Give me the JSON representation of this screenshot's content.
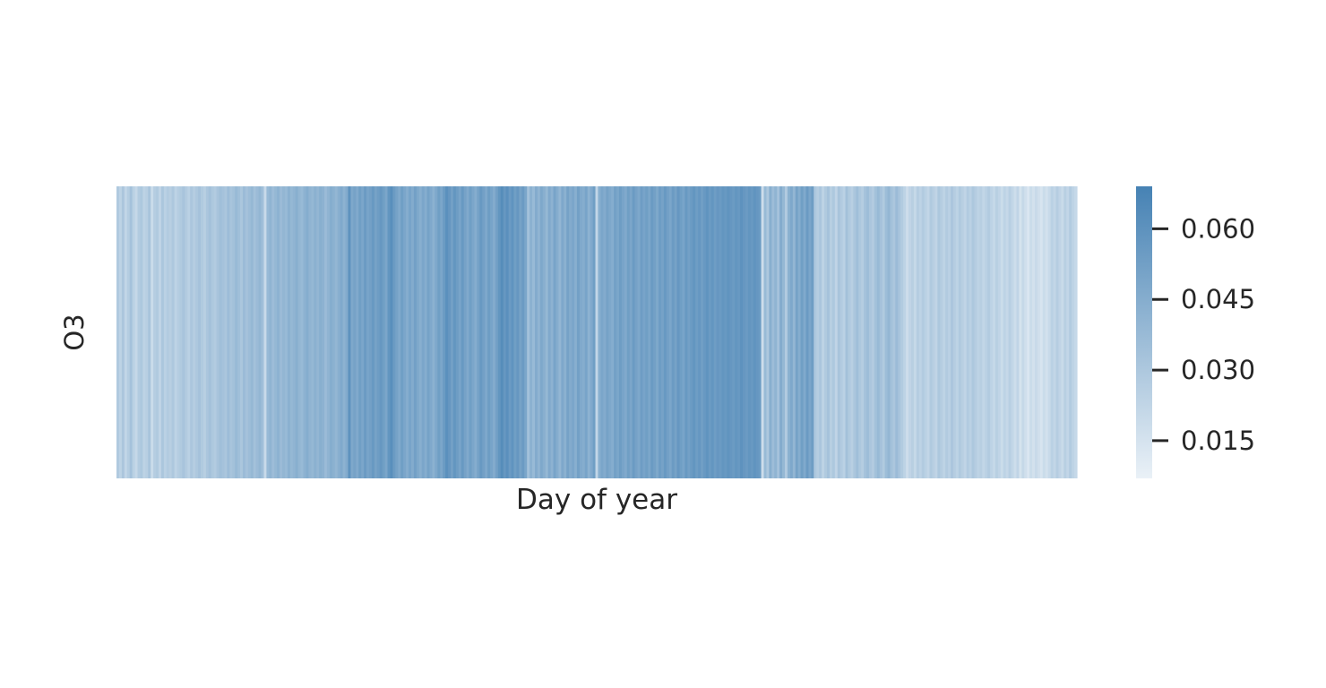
{
  "chart_data": {
    "type": "heatmap",
    "title": "",
    "xlabel": "Day of year",
    "ylabel": "",
    "row_labels": [
      "O3"
    ],
    "x": {
      "start": 1,
      "end": 365,
      "step": 1
    },
    "grid": false,
    "colormap": {
      "low": "#eaf1f7",
      "high": "#4682b4"
    },
    "colorbar": {
      "range": [
        0.007,
        0.069
      ],
      "ticks": [
        0.015,
        0.03,
        0.045,
        0.06
      ],
      "tick_labels": [
        "0.015",
        "0.030",
        "0.045",
        "0.060"
      ],
      "placement": "right"
    },
    "values": [
      0.029,
      0.024,
      0.031,
      0.022,
      0.027,
      0.033,
      0.025,
      0.021,
      0.028,
      0.03,
      0.024,
      0.026,
      0.032,
      0.019,
      0.027,
      0.029,
      0.023,
      0.031,
      0.025,
      0.028,
      0.026,
      0.03,
      0.024,
      0.027,
      0.029,
      0.032,
      0.028,
      0.025,
      0.031,
      0.027,
      0.03,
      0.033,
      0.029,
      0.026,
      0.031,
      0.034,
      0.03,
      0.028,
      0.032,
      0.035,
      0.033,
      0.031,
      0.036,
      0.032,
      0.034,
      0.038,
      0.035,
      0.031,
      0.037,
      0.033,
      0.036,
      0.039,
      0.034,
      0.037,
      0.04,
      0.035,
      0.02,
      0.038,
      0.041,
      0.036,
      0.039,
      0.042,
      0.037,
      0.04,
      0.038,
      0.043,
      0.039,
      0.041,
      0.044,
      0.04,
      0.038,
      0.042,
      0.045,
      0.041,
      0.039,
      0.043,
      0.04,
      0.044,
      0.042,
      0.037,
      0.041,
      0.045,
      0.043,
      0.04,
      0.044,
      0.047,
      0.042,
      0.046,
      0.06,
      0.048,
      0.051,
      0.047,
      0.053,
      0.049,
      0.055,
      0.05,
      0.052,
      0.056,
      0.051,
      0.054,
      0.057,
      0.053,
      0.049,
      0.058,
      0.062,
      0.055,
      0.051,
      0.047,
      0.053,
      0.049,
      0.045,
      0.05,
      0.046,
      0.052,
      0.048,
      0.044,
      0.049,
      0.045,
      0.051,
      0.047,
      0.043,
      0.048,
      0.053,
      0.049,
      0.055,
      0.061,
      0.057,
      0.052,
      0.058,
      0.054,
      0.05,
      0.056,
      0.051,
      0.047,
      0.053,
      0.049,
      0.045,
      0.051,
      0.056,
      0.052,
      0.048,
      0.054,
      0.05,
      0.046,
      0.052,
      0.058,
      0.063,
      0.057,
      0.061,
      0.055,
      0.059,
      0.053,
      0.057,
      0.051,
      0.055,
      0.049,
      0.034,
      0.043,
      0.038,
      0.046,
      0.041,
      0.048,
      0.044,
      0.039,
      0.047,
      0.042,
      0.05,
      0.045,
      0.04,
      0.048,
      0.043,
      0.051,
      0.046,
      0.049,
      0.044,
      0.052,
      0.047,
      0.045,
      0.05,
      0.042,
      0.047,
      0.053,
      0.022,
      0.044,
      0.049,
      0.046,
      0.051,
      0.048,
      0.045,
      0.052,
      0.049,
      0.054,
      0.05,
      0.047,
      0.053,
      0.049,
      0.055,
      0.051,
      0.048,
      0.054,
      0.05,
      0.053,
      0.049,
      0.055,
      0.052,
      0.048,
      0.054,
      0.051,
      0.056,
      0.052,
      0.049,
      0.055,
      0.051,
      0.057,
      0.053,
      0.05,
      0.056,
      0.052,
      0.055,
      0.058,
      0.054,
      0.057,
      0.053,
      0.056,
      0.059,
      0.055,
      0.058,
      0.054,
      0.057,
      0.055,
      0.058,
      0.056,
      0.059,
      0.057,
      0.055,
      0.058,
      0.056,
      0.06,
      0.057,
      0.055,
      0.058,
      0.056,
      0.059,
      0.057,
      0.055,
      0.018,
      0.038,
      0.03,
      0.044,
      0.036,
      0.041,
      0.033,
      0.046,
      0.039,
      0.028,
      0.043,
      0.048,
      0.04,
      0.051,
      0.045,
      0.053,
      0.047,
      0.055,
      0.049,
      0.054,
      0.03,
      0.027,
      0.031,
      0.024,
      0.029,
      0.033,
      0.026,
      0.03,
      0.023,
      0.032,
      0.028,
      0.025,
      0.034,
      0.029,
      0.026,
      0.031,
      0.035,
      0.03,
      0.027,
      0.033,
      0.036,
      0.031,
      0.028,
      0.034,
      0.038,
      0.033,
      0.029,
      0.036,
      0.04,
      0.034,
      0.031,
      0.037,
      0.032,
      0.028,
      0.024,
      0.018,
      0.023,
      0.026,
      0.021,
      0.027,
      0.024,
      0.028,
      0.025,
      0.022,
      0.029,
      0.026,
      0.023,
      0.03,
      0.027,
      0.024,
      0.028,
      0.025,
      0.031,
      0.027,
      0.024,
      0.029,
      0.026,
      0.023,
      0.028,
      0.025,
      0.03,
      0.027,
      0.024,
      0.026,
      0.022,
      0.025,
      0.028,
      0.024,
      0.021,
      0.026,
      0.023,
      0.019,
      0.024,
      0.021,
      0.026,
      0.022,
      0.018,
      0.023,
      0.015,
      0.021,
      0.017,
      0.013,
      0.019,
      0.016,
      0.02,
      0.017,
      0.014,
      0.019,
      0.016,
      0.02,
      0.025,
      0.022,
      0.027,
      0.023,
      0.02,
      0.026,
      0.022,
      0.028,
      0.024,
      0.021
    ]
  }
}
